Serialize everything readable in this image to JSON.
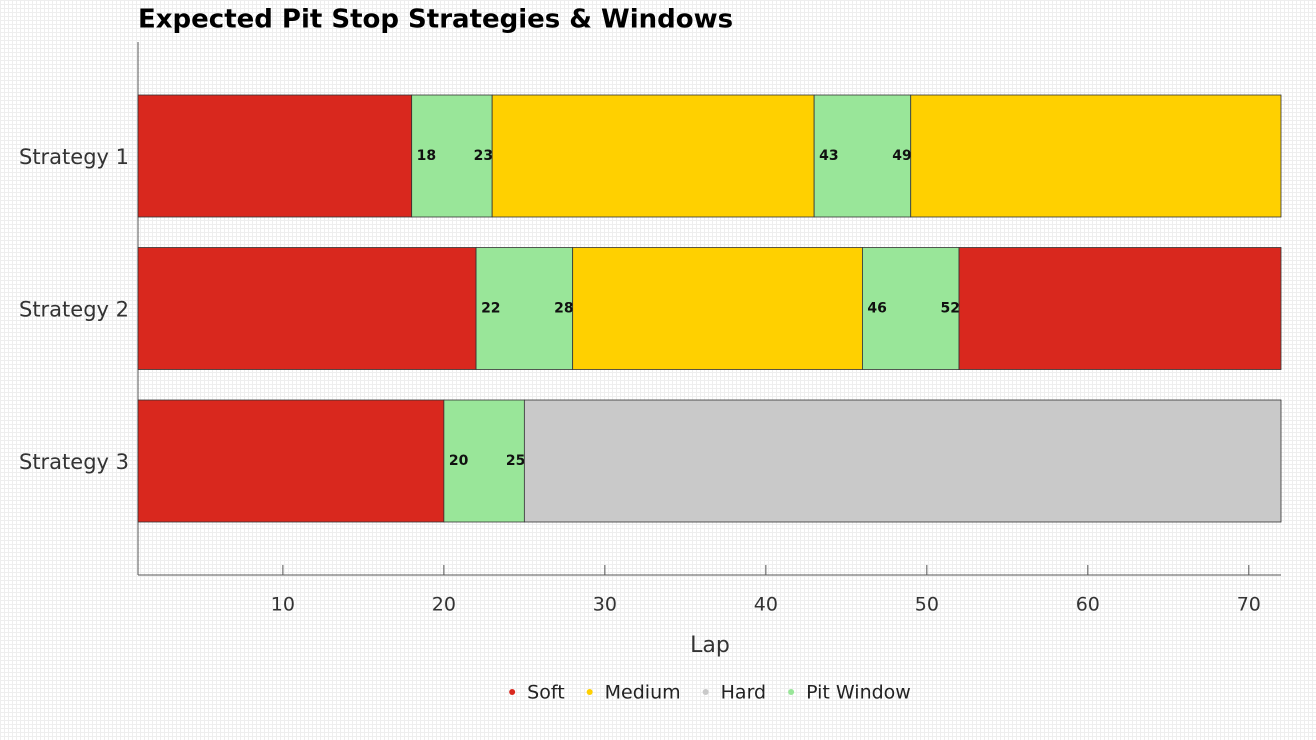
{
  "chart_data": {
    "type": "gantt",
    "title": "Expected Pit Stop Strategies & Windows",
    "xlabel": "Lap",
    "xlim": [
      1,
      72
    ],
    "xticks": [
      10,
      20,
      30,
      40,
      50,
      60,
      70
    ],
    "grid": false,
    "legend": "bottom",
    "series": [
      {
        "name": "Soft",
        "color": "#d9281e"
      },
      {
        "name": "Medium",
        "color": "#ffd000"
      },
      {
        "name": "Hard",
        "color": "#c9c9c9"
      },
      {
        "name": "Pit Window",
        "color": "#99e699"
      }
    ],
    "rows": [
      {
        "name": "Strategy 1",
        "segments": [
          {
            "series": "Soft",
            "start": 1,
            "end": 18
          },
          {
            "series": "Pit Window",
            "start": 18,
            "end": 23
          },
          {
            "series": "Medium",
            "start": 23,
            "end": 43
          },
          {
            "series": "Pit Window",
            "start": 43,
            "end": 49
          },
          {
            "series": "Medium",
            "start": 49,
            "end": 72
          }
        ]
      },
      {
        "name": "Strategy 2",
        "segments": [
          {
            "series": "Soft",
            "start": 1,
            "end": 22
          },
          {
            "series": "Pit Window",
            "start": 22,
            "end": 28
          },
          {
            "series": "Medium",
            "start": 28,
            "end": 46
          },
          {
            "series": "Pit Window",
            "start": 46,
            "end": 52
          },
          {
            "series": "Soft",
            "start": 52,
            "end": 72
          }
        ]
      },
      {
        "name": "Strategy 3",
        "segments": [
          {
            "series": "Soft",
            "start": 1,
            "end": 20
          },
          {
            "series": "Pit Window",
            "start": 20,
            "end": 25
          },
          {
            "series": "Hard",
            "start": 25,
            "end": 72
          }
        ]
      }
    ]
  }
}
